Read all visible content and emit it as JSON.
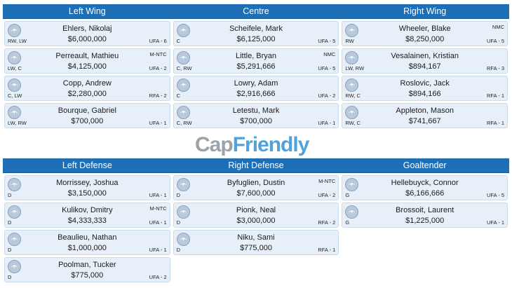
{
  "top_section": {
    "headers": [
      "Left Wing",
      "Centre",
      "Right Wing"
    ],
    "columns": [
      [
        {
          "name": "Ehlers, Nikolaj",
          "salary": "$6,000,000",
          "pos": "RW, LW",
          "term": "UFA - 6",
          "clause": ""
        },
        {
          "name": "Perreault, Mathieu",
          "salary": "$4,125,000",
          "pos": "LW, C",
          "term": "UFA - 2",
          "clause": "M-NTC"
        },
        {
          "name": "Copp, Andrew",
          "salary": "$2,280,000",
          "pos": "C, LW",
          "term": "RFA - 2",
          "clause": ""
        },
        {
          "name": "Bourque, Gabriel",
          "salary": "$700,000",
          "pos": "LW, RW",
          "term": "UFA - 1",
          "clause": ""
        }
      ],
      [
        {
          "name": "Scheifele, Mark",
          "salary": "$6,125,000",
          "pos": "C",
          "term": "UFA - 5",
          "clause": ""
        },
        {
          "name": "Little, Bryan",
          "salary": "$5,291,666",
          "pos": "C, RW",
          "term": "UFA - 5",
          "clause": "NMC"
        },
        {
          "name": "Lowry, Adam",
          "salary": "$2,916,666",
          "pos": "C",
          "term": "UFA - 2",
          "clause": ""
        },
        {
          "name": "Letestu, Mark",
          "salary": "$700,000",
          "pos": "C, RW",
          "term": "UFA - 1",
          "clause": ""
        }
      ],
      [
        {
          "name": "Wheeler, Blake",
          "salary": "$8,250,000",
          "pos": "RW",
          "term": "UFA - 5",
          "clause": "NMC"
        },
        {
          "name": "Vesalainen, Kristian",
          "salary": "$894,167",
          "pos": "LW, RW",
          "term": "RFA - 3",
          "clause": ""
        },
        {
          "name": "Roslovic, Jack",
          "salary": "$894,166",
          "pos": "RW, C",
          "term": "RFA - 1",
          "clause": ""
        },
        {
          "name": "Appleton, Mason",
          "salary": "$741,667",
          "pos": "RW, C",
          "term": "RFA - 1",
          "clause": ""
        }
      ]
    ]
  },
  "bottom_section": {
    "headers": [
      "Left Defense",
      "Right Defense",
      "Goaltender"
    ],
    "columns": [
      [
        {
          "name": "Morrissey, Joshua",
          "salary": "$3,150,000",
          "pos": "D",
          "term": "UFA - 1",
          "clause": ""
        },
        {
          "name": "Kulikov, Dmitry",
          "salary": "$4,333,333",
          "pos": "D",
          "term": "UFA - 1",
          "clause": "M-NTC"
        },
        {
          "name": "Beaulieu, Nathan",
          "salary": "$1,000,000",
          "pos": "D",
          "term": "UFA - 1",
          "clause": ""
        },
        {
          "name": "Poolman, Tucker",
          "salary": "$775,000",
          "pos": "D",
          "term": "UFA - 2",
          "clause": ""
        }
      ],
      [
        {
          "name": "Byfuglien, Dustin",
          "salary": "$7,600,000",
          "pos": "D",
          "term": "UFA - 2",
          "clause": "M-NTC"
        },
        {
          "name": "Pionk, Neal",
          "salary": "$3,000,000",
          "pos": "D",
          "term": "RFA - 2",
          "clause": ""
        },
        {
          "name": "Niku, Sami",
          "salary": "$775,000",
          "pos": "D",
          "term": "RFA - 1",
          "clause": ""
        }
      ],
      [
        {
          "name": "Hellebuyck, Connor",
          "salary": "$6,166,666",
          "pos": "G",
          "term": "UFA - 5",
          "clause": ""
        },
        {
          "name": "Brossoit, Laurent",
          "salary": "$1,225,000",
          "pos": "G",
          "term": "UFA - 1",
          "clause": ""
        }
      ]
    ]
  },
  "watermark": {
    "part1": "Cap",
    "part2": "Friendly"
  },
  "colors": {
    "header_bg": "#1f6fb6",
    "card_bg": "#e7f0f9",
    "card_border": "#c9dbee"
  },
  "icons": {
    "team_logo": "jets-logo-icon"
  }
}
